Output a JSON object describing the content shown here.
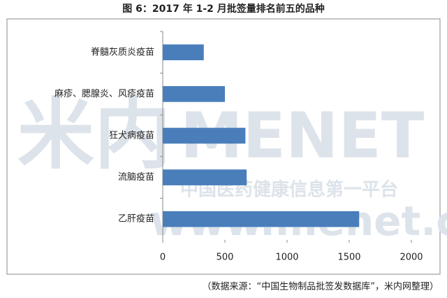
{
  "chart_data": {
    "type": "barh",
    "title": "图 6：2017 年 1-2 月批签量排名前五的品种",
    "categories": [
      "脊髓灰质炎疫苗",
      "麻疹、腮腺炎、风疹疫苗",
      "狂犬病疫苗",
      "流脑疫苗",
      "乙肝疫苗"
    ],
    "values": [
      330,
      500,
      665,
      675,
      1580
    ],
    "color": "#4a7ebb",
    "xlim": [
      0,
      2000
    ],
    "xticks": [
      0,
      500,
      1000,
      1500,
      2000
    ],
    "source": "（数据来源：“中国生物制品批签发数据库”，米内网整理）",
    "watermark": [
      "米内",
      "MENET",
      "中国医药健康信息第一平台",
      "www.menet.com.cn"
    ]
  }
}
